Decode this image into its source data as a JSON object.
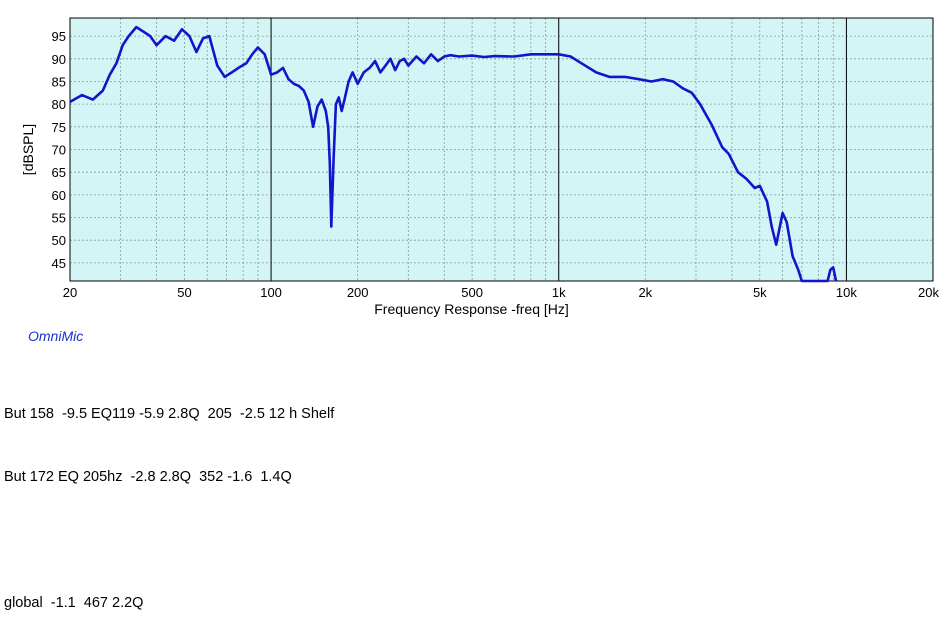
{
  "chart_data": {
    "type": "line",
    "xlabel": "Frequency Response -freq [Hz]",
    "ylabel": "[dBSPL]",
    "xscale": "log",
    "xlim": [
      20,
      20000
    ],
    "ylim": [
      41,
      99
    ],
    "x_ticks": [
      20,
      50,
      100,
      200,
      500,
      1000,
      2000,
      5000,
      10000,
      20000
    ],
    "x_tick_labels": [
      "20",
      "50",
      "100",
      "200",
      "500",
      "1k",
      "2k",
      "5k",
      "10k",
      "20k"
    ],
    "y_ticks": [
      45,
      50,
      55,
      60,
      65,
      70,
      75,
      80,
      85,
      90,
      95
    ],
    "y_tick_labels": [
      "45",
      "50",
      "55",
      "60",
      "65",
      "70",
      "75",
      "80",
      "85",
      "90",
      "95"
    ],
    "grid": true,
    "plot_background": "#d4f5f5",
    "grid_color": "#8a9a9a",
    "series": [
      {
        "color": "#1414cc",
        "x": [
          20,
          22,
          24,
          26,
          27.5,
          29,
          30.5,
          32,
          34,
          36,
          38,
          40,
          43,
          46,
          49,
          52,
          55,
          58,
          61,
          65,
          69,
          73,
          77,
          82,
          86,
          90,
          95,
          100,
          105,
          110,
          115,
          120,
          125,
          130,
          135,
          140,
          145,
          150,
          155,
          158,
          160,
          162,
          165,
          168,
          172,
          176,
          180,
          186,
          192,
          200,
          210,
          220,
          230,
          240,
          250,
          260,
          270,
          280,
          290,
          300,
          320,
          340,
          360,
          380,
          400,
          420,
          450,
          500,
          550,
          600,
          700,
          800,
          900,
          1000,
          1100,
          1200,
          1350,
          1500,
          1700,
          1900,
          2100,
          2300,
          2500,
          2700,
          2900,
          3100,
          3400,
          3700,
          3900,
          4200,
          4500,
          4800,
          5000,
          5300,
          5500,
          5700,
          6000,
          6200,
          6500,
          6800,
          7000,
          8600,
          8800,
          9000,
          9200
        ],
        "y": [
          80.5,
          82,
          81,
          83,
          86.5,
          89,
          93,
          95,
          97,
          96,
          95,
          93,
          95,
          94,
          96.5,
          95,
          91.5,
          94.5,
          95,
          88.5,
          86,
          87,
          88,
          89,
          91,
          92.5,
          91,
          86.5,
          87,
          88,
          85.5,
          84.5,
          84,
          83,
          80.5,
          75,
          79.5,
          81,
          78.5,
          75,
          67,
          53,
          68,
          80,
          81.5,
          78.5,
          81,
          85,
          87,
          84.5,
          87,
          88,
          89.5,
          87,
          88.5,
          90,
          87.5,
          89.5,
          90,
          88.5,
          90.5,
          89,
          91,
          89.5,
          90.5,
          90.8,
          90.5,
          90.7,
          90.4,
          90.6,
          90.5,
          91,
          91,
          91,
          90.5,
          89,
          87,
          86,
          86,
          85.5,
          85,
          85.5,
          85,
          83.5,
          82.5,
          80,
          75.5,
          70.5,
          69,
          65,
          63.5,
          61.5,
          62,
          58.5,
          53,
          49,
          56,
          54,
          46.5,
          43.5,
          41,
          41,
          43.5,
          44,
          41
        ]
      }
    ]
  },
  "brand": "OmniMic",
  "notes": [
    "But 158  -9.5 EQ119 -5.9 2.8Q  205  -2.5 12 h Shelf",
    "But 172 EQ 205hz  -2.8 2.8Q  352 -1.6  1.4Q",
    "",
    "global  -1.1  467 2.2Q"
  ]
}
